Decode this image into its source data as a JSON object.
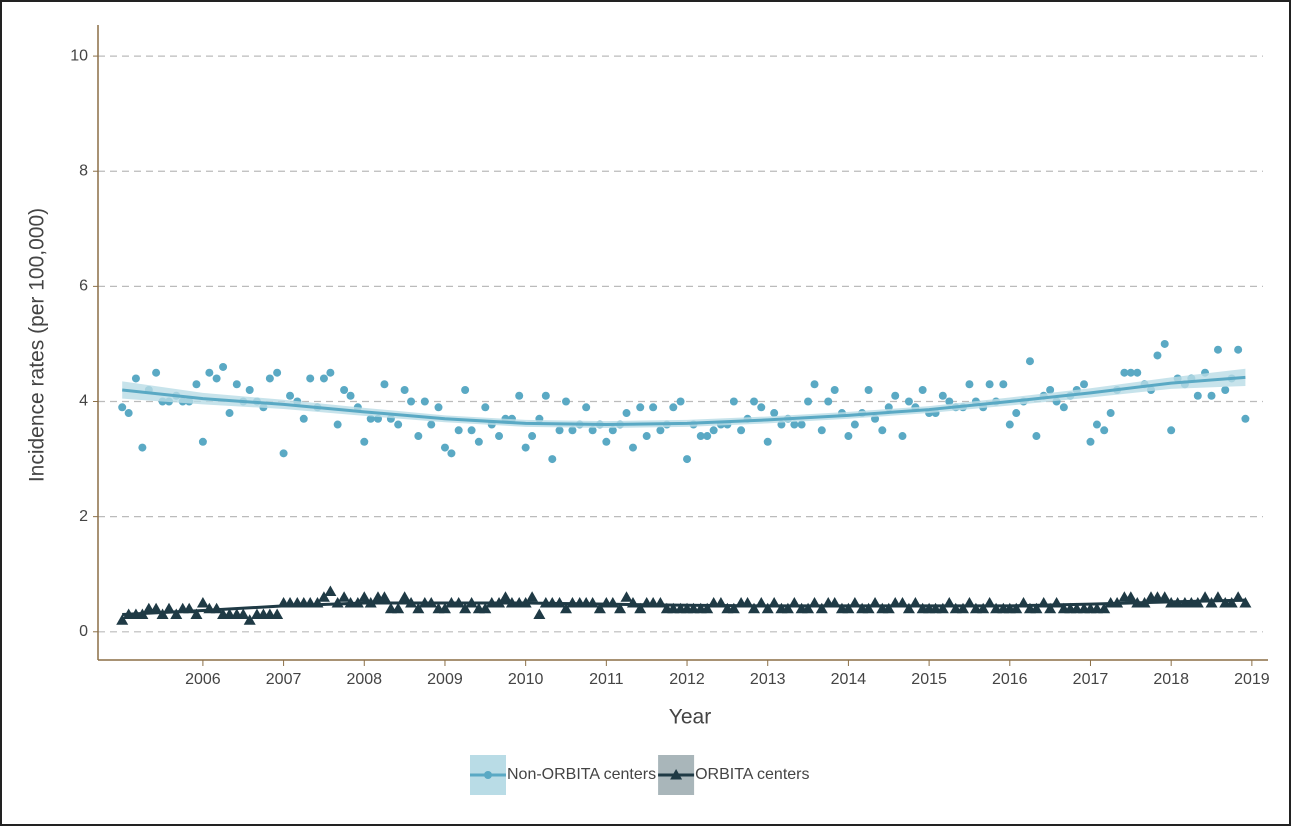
{
  "chart_data": {
    "type": "scatter",
    "x_label": "Year",
    "y_label": "Incidence rates (per 100,000)",
    "xlim": [
      2004.7,
      2019.2
    ],
    "xticks": [
      2006,
      2007,
      2008,
      2009,
      2010,
      2011,
      2012,
      2013,
      2014,
      2015,
      2016,
      2017,
      2018,
      2019
    ],
    "ylim": [
      -0.49,
      10.54
    ],
    "yticks": [
      0,
      2,
      4,
      6,
      8,
      10
    ],
    "grid": true,
    "x": [
      2005,
      2005.08,
      2005.17,
      2005.25,
      2005.33,
      2005.42,
      2005.5,
      2005.58,
      2005.67,
      2005.75,
      2005.83,
      2005.92,
      2006,
      2006.08,
      2006.17,
      2006.25,
      2006.33,
      2006.42,
      2006.5,
      2006.58,
      2006.67,
      2006.75,
      2006.83,
      2006.92,
      2007,
      2007.08,
      2007.17,
      2007.25,
      2007.33,
      2007.42,
      2007.5,
      2007.58,
      2007.67,
      2007.75,
      2007.83,
      2007.92,
      2008,
      2008.08,
      2008.17,
      2008.25,
      2008.33,
      2008.42,
      2008.5,
      2008.58,
      2008.67,
      2008.75,
      2008.83,
      2008.92,
      2009,
      2009.08,
      2009.17,
      2009.25,
      2009.33,
      2009.42,
      2009.5,
      2009.58,
      2009.67,
      2009.75,
      2009.83,
      2009.92,
      2010,
      2010.08,
      2010.17,
      2010.25,
      2010.33,
      2010.42,
      2010.5,
      2010.58,
      2010.67,
      2010.75,
      2010.83,
      2010.92,
      2011,
      2011.08,
      2011.17,
      2011.25,
      2011.33,
      2011.42,
      2011.5,
      2011.58,
      2011.67,
      2011.75,
      2011.83,
      2011.92,
      2012,
      2012.08,
      2012.17,
      2012.25,
      2012.33,
      2012.42,
      2012.5,
      2012.58,
      2012.67,
      2012.75,
      2012.83,
      2012.92,
      2013,
      2013.08,
      2013.17,
      2013.25,
      2013.33,
      2013.42,
      2013.5,
      2013.58,
      2013.67,
      2013.75,
      2013.83,
      2013.92,
      2014,
      2014.08,
      2014.17,
      2014.25,
      2014.33,
      2014.42,
      2014.5,
      2014.58,
      2014.67,
      2014.75,
      2014.83,
      2014.92,
      2015,
      2015.08,
      2015.17,
      2015.25,
      2015.33,
      2015.42,
      2015.5,
      2015.58,
      2015.67,
      2015.75,
      2015.83,
      2015.92,
      2016,
      2016.08,
      2016.17,
      2016.25,
      2016.33,
      2016.42,
      2016.5,
      2016.58,
      2016.67,
      2016.75,
      2016.83,
      2016.92,
      2017,
      2017.08,
      2017.17,
      2017.25,
      2017.33,
      2017.42,
      2017.5,
      2017.58,
      2017.67,
      2017.75,
      2017.83,
      2017.92,
      2018,
      2018.08,
      2018.17,
      2018.25,
      2018.33,
      2018.42,
      2018.5,
      2018.58,
      2018.67,
      2018.75,
      2018.83,
      2018.92
    ],
    "trend_x": [
      2005,
      2006,
      2007,
      2008,
      2009,
      2010,
      2011,
      2012,
      2013,
      2014,
      2015,
      2016,
      2017,
      2018,
      2018.92
    ],
    "series": [
      {
        "name": "Non-ORBITA centers",
        "color": "#5aa9c4",
        "band_color": "#b9dce6",
        "marker": "circle",
        "values": [
          3.9,
          3.8,
          4.4,
          3.2,
          4.2,
          4.5,
          4.0,
          4.0,
          4.1,
          4.0,
          4.0,
          4.3,
          3.3,
          4.5,
          4.4,
          4.6,
          3.8,
          4.3,
          4.0,
          4.2,
          4.0,
          3.9,
          4.4,
          4.5,
          3.1,
          4.1,
          4.0,
          3.7,
          4.4,
          3.9,
          4.4,
          4.5,
          3.6,
          4.2,
          4.1,
          3.9,
          3.3,
          3.7,
          3.7,
          4.3,
          3.7,
          3.6,
          4.2,
          4.0,
          3.4,
          4.0,
          3.6,
          3.9,
          3.2,
          3.1,
          3.5,
          4.2,
          3.5,
          3.3,
          3.9,
          3.6,
          3.4,
          3.7,
          3.7,
          4.1,
          3.2,
          3.4,
          3.7,
          4.1,
          3.0,
          3.5,
          4.0,
          3.5,
          3.6,
          3.9,
          3.5,
          3.6,
          3.3,
          3.5,
          3.6,
          3.8,
          3.2,
          3.9,
          3.4,
          3.9,
          3.5,
          3.6,
          3.9,
          4.0,
          3.0,
          3.6,
          3.4,
          3.4,
          3.5,
          3.6,
          3.6,
          4.0,
          3.5,
          3.7,
          4.0,
          3.9,
          3.3,
          3.8,
          3.6,
          3.7,
          3.6,
          3.6,
          4.0,
          4.3,
          3.5,
          4.0,
          4.2,
          3.8,
          3.4,
          3.6,
          3.8,
          4.2,
          3.7,
          3.5,
          3.9,
          4.1,
          3.4,
          4.0,
          3.9,
          4.2,
          3.8,
          3.8,
          4.1,
          4.0,
          3.9,
          3.9,
          4.3,
          4.0,
          3.9,
          4.3,
          4.0,
          4.3,
          3.6,
          3.8,
          4.0,
          4.7,
          3.4,
          4.1,
          4.2,
          4.0,
          3.9,
          4.1,
          4.2,
          4.3,
          3.3,
          3.6,
          3.5,
          3.8,
          4.2,
          4.5,
          4.5,
          4.5,
          4.3,
          4.2,
          4.8,
          5.0,
          3.5,
          4.4,
          4.3,
          4.4,
          4.1,
          4.5,
          4.1,
          4.9,
          4.2,
          4.4,
          4.9,
          3.7
        ],
        "trend": [
          4.2,
          4.05,
          3.95,
          3.82,
          3.7,
          3.62,
          3.6,
          3.62,
          3.68,
          3.76,
          3.86,
          4.0,
          4.15,
          4.32,
          4.42
        ],
        "trend_lower": [
          4.05,
          3.95,
          3.87,
          3.75,
          3.64,
          3.56,
          3.54,
          3.56,
          3.62,
          3.7,
          3.8,
          3.93,
          4.07,
          4.22,
          4.27
        ],
        "trend_upper": [
          4.35,
          4.15,
          4.03,
          3.89,
          3.76,
          3.68,
          3.66,
          3.68,
          3.74,
          3.82,
          3.92,
          4.07,
          4.23,
          4.42,
          4.57
        ]
      },
      {
        "name": "ORBITA centers",
        "color": "#1f3a45",
        "band_color": "#a9b6ba",
        "marker": "triangle",
        "values": [
          0.2,
          0.3,
          0.3,
          0.3,
          0.4,
          0.4,
          0.3,
          0.4,
          0.3,
          0.4,
          0.4,
          0.3,
          0.5,
          0.4,
          0.4,
          0.3,
          0.3,
          0.3,
          0.3,
          0.2,
          0.3,
          0.3,
          0.3,
          0.3,
          0.5,
          0.5,
          0.5,
          0.5,
          0.5,
          0.5,
          0.6,
          0.7,
          0.5,
          0.6,
          0.5,
          0.5,
          0.6,
          0.5,
          0.6,
          0.6,
          0.4,
          0.4,
          0.6,
          0.5,
          0.4,
          0.5,
          0.5,
          0.4,
          0.4,
          0.5,
          0.5,
          0.4,
          0.5,
          0.4,
          0.4,
          0.5,
          0.5,
          0.6,
          0.5,
          0.5,
          0.5,
          0.6,
          0.3,
          0.5,
          0.5,
          0.5,
          0.4,
          0.5,
          0.5,
          0.5,
          0.5,
          0.4,
          0.5,
          0.5,
          0.4,
          0.6,
          0.5,
          0.4,
          0.5,
          0.5,
          0.5,
          0.4,
          0.4,
          0.4,
          0.4,
          0.4,
          0.4,
          0.4,
          0.5,
          0.5,
          0.4,
          0.4,
          0.5,
          0.5,
          0.4,
          0.5,
          0.4,
          0.5,
          0.4,
          0.4,
          0.5,
          0.4,
          0.4,
          0.5,
          0.4,
          0.5,
          0.5,
          0.4,
          0.4,
          0.5,
          0.4,
          0.4,
          0.5,
          0.4,
          0.4,
          0.5,
          0.5,
          0.4,
          0.5,
          0.4,
          0.4,
          0.4,
          0.4,
          0.5,
          0.4,
          0.4,
          0.5,
          0.4,
          0.4,
          0.5,
          0.4,
          0.4,
          0.4,
          0.4,
          0.5,
          0.4,
          0.4,
          0.5,
          0.4,
          0.5,
          0.4,
          0.4,
          0.4,
          0.4,
          0.4,
          0.4,
          0.4,
          0.5,
          0.5,
          0.6,
          0.6,
          0.5,
          0.5,
          0.6,
          0.6,
          0.6,
          0.5,
          0.5,
          0.5,
          0.5,
          0.5,
          0.6,
          0.5,
          0.6,
          0.5,
          0.5,
          0.6,
          0.5
        ],
        "trend": [
          0.3,
          0.37,
          0.45,
          0.5,
          0.5,
          0.5,
          0.48,
          0.46,
          0.45,
          0.45,
          0.45,
          0.45,
          0.48,
          0.52,
          0.55
        ]
      }
    ]
  }
}
